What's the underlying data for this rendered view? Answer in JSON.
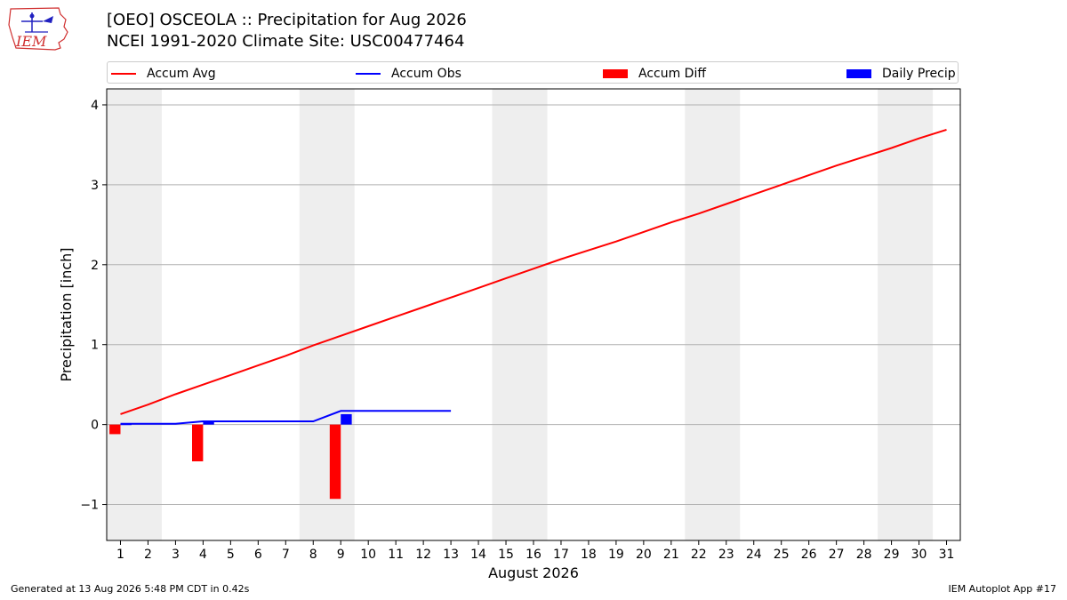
{
  "header": {
    "logo_text": "IEM",
    "title_line1": "[OEO] OSCEOLA :: Precipitation for Aug 2026",
    "title_line2": "NCEI 1991-2020 Climate Site: USC00477464"
  },
  "footer": {
    "generated": "Generated at 13 Aug 2026 5:48 PM CDT in 0.42s",
    "app": "IEM Autoplot App #17"
  },
  "colors": {
    "avg": "#ff0000",
    "obs": "#0000ff",
    "diff": "#ff0000",
    "daily": "#0000ff",
    "weekend": "#eeeeee",
    "grid": "#b0b0b0"
  },
  "chart_data": {
    "type": "line",
    "xlabel": "August 2026",
    "ylabel": "Precipitation [inch]",
    "xlim": [
      0.5,
      31.5
    ],
    "ylim": [
      -1.45,
      4.2
    ],
    "yticks": [
      -1,
      0,
      1,
      2,
      3,
      4
    ],
    "ytick_labels": [
      "−1",
      "0",
      "1",
      "2",
      "3",
      "4"
    ],
    "days": [
      1,
      2,
      3,
      4,
      5,
      6,
      7,
      8,
      9,
      10,
      11,
      12,
      13,
      14,
      15,
      16,
      17,
      18,
      19,
      20,
      21,
      22,
      23,
      24,
      25,
      26,
      27,
      28,
      29,
      30,
      31
    ],
    "grid": "horizontal",
    "legend_position": "top",
    "legend": [
      "Accum Avg",
      "Accum Obs",
      "Accum Diff",
      "Daily Precip"
    ],
    "weekend_spans": [
      [
        0.5,
        2.5
      ],
      [
        7.5,
        9.5
      ],
      [
        14.5,
        16.5
      ],
      [
        21.5,
        23.5
      ],
      [
        28.5,
        30.5
      ]
    ],
    "accum_avg": {
      "name": "Accum Avg",
      "x": [
        1,
        2,
        3,
        4,
        5,
        6,
        7,
        8,
        9,
        10,
        11,
        12,
        13,
        14,
        15,
        16,
        17,
        18,
        19,
        20,
        21,
        22,
        23,
        24,
        25,
        26,
        27,
        28,
        29,
        30,
        31
      ],
      "y": [
        0.13,
        0.25,
        0.38,
        0.5,
        0.62,
        0.74,
        0.86,
        0.99,
        1.11,
        1.23,
        1.35,
        1.47,
        1.59,
        1.71,
        1.83,
        1.95,
        2.07,
        2.18,
        2.29,
        2.41,
        2.53,
        2.64,
        2.76,
        2.88,
        3.0,
        3.12,
        3.24,
        3.35,
        3.46,
        3.58,
        3.69
      ]
    },
    "accum_obs": {
      "name": "Accum Obs",
      "x": [
        1,
        2,
        3,
        4,
        5,
        6,
        7,
        8,
        9,
        10,
        11,
        12,
        13
      ],
      "y": [
        0.01,
        0.01,
        0.01,
        0.04,
        0.04,
        0.04,
        0.04,
        0.04,
        0.17,
        0.17,
        0.17,
        0.17,
        0.17
      ]
    },
    "accum_diff": {
      "name": "Accum Diff",
      "x": [
        1,
        4,
        9
      ],
      "y": [
        -0.12,
        -0.46,
        -0.93
      ]
    },
    "daily_precip": {
      "name": "Daily Precip",
      "x": [
        1,
        4,
        9
      ],
      "y": [
        0.01,
        0.04,
        0.13
      ]
    }
  }
}
